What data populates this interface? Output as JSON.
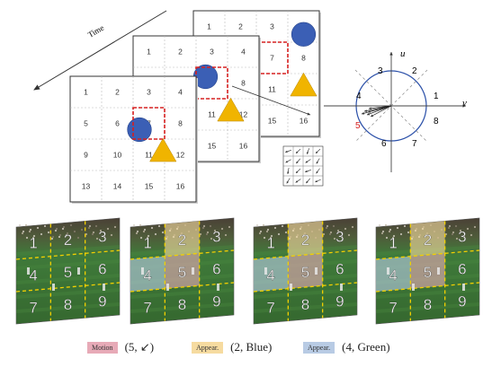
{
  "time_label": "Time",
  "grid_numbers": [
    "1",
    "2",
    "3",
    "4",
    "5",
    "6",
    "7",
    "8",
    "9",
    "10",
    "11",
    "12",
    "13",
    "14",
    "15",
    "16"
  ],
  "compass": {
    "axis_u": "u",
    "axis_v": "v",
    "directions": [
      "1",
      "2",
      "3",
      "4",
      "5",
      "6",
      "7",
      "8"
    ],
    "highlight_direction": "5"
  },
  "field_grid_numbers": [
    "1",
    "2",
    "3",
    "4",
    "5",
    "6",
    "7",
    "8",
    "9"
  ],
  "legend": [
    {
      "swatch": "Motion",
      "text": "(5, ↙)"
    },
    {
      "swatch": "Appear.",
      "text": "(2, Blue)"
    },
    {
      "swatch": "Appear.",
      "text": "(4, Green)"
    }
  ],
  "colors": {
    "circle": "#3b5fb5",
    "triangle": "#f0b400",
    "dash_box": "#d62020",
    "motion": "#e7aab7",
    "appear_yellow": "#f6dba0",
    "appear_blue": "#b8cbe4",
    "field": "#3b6b35"
  }
}
